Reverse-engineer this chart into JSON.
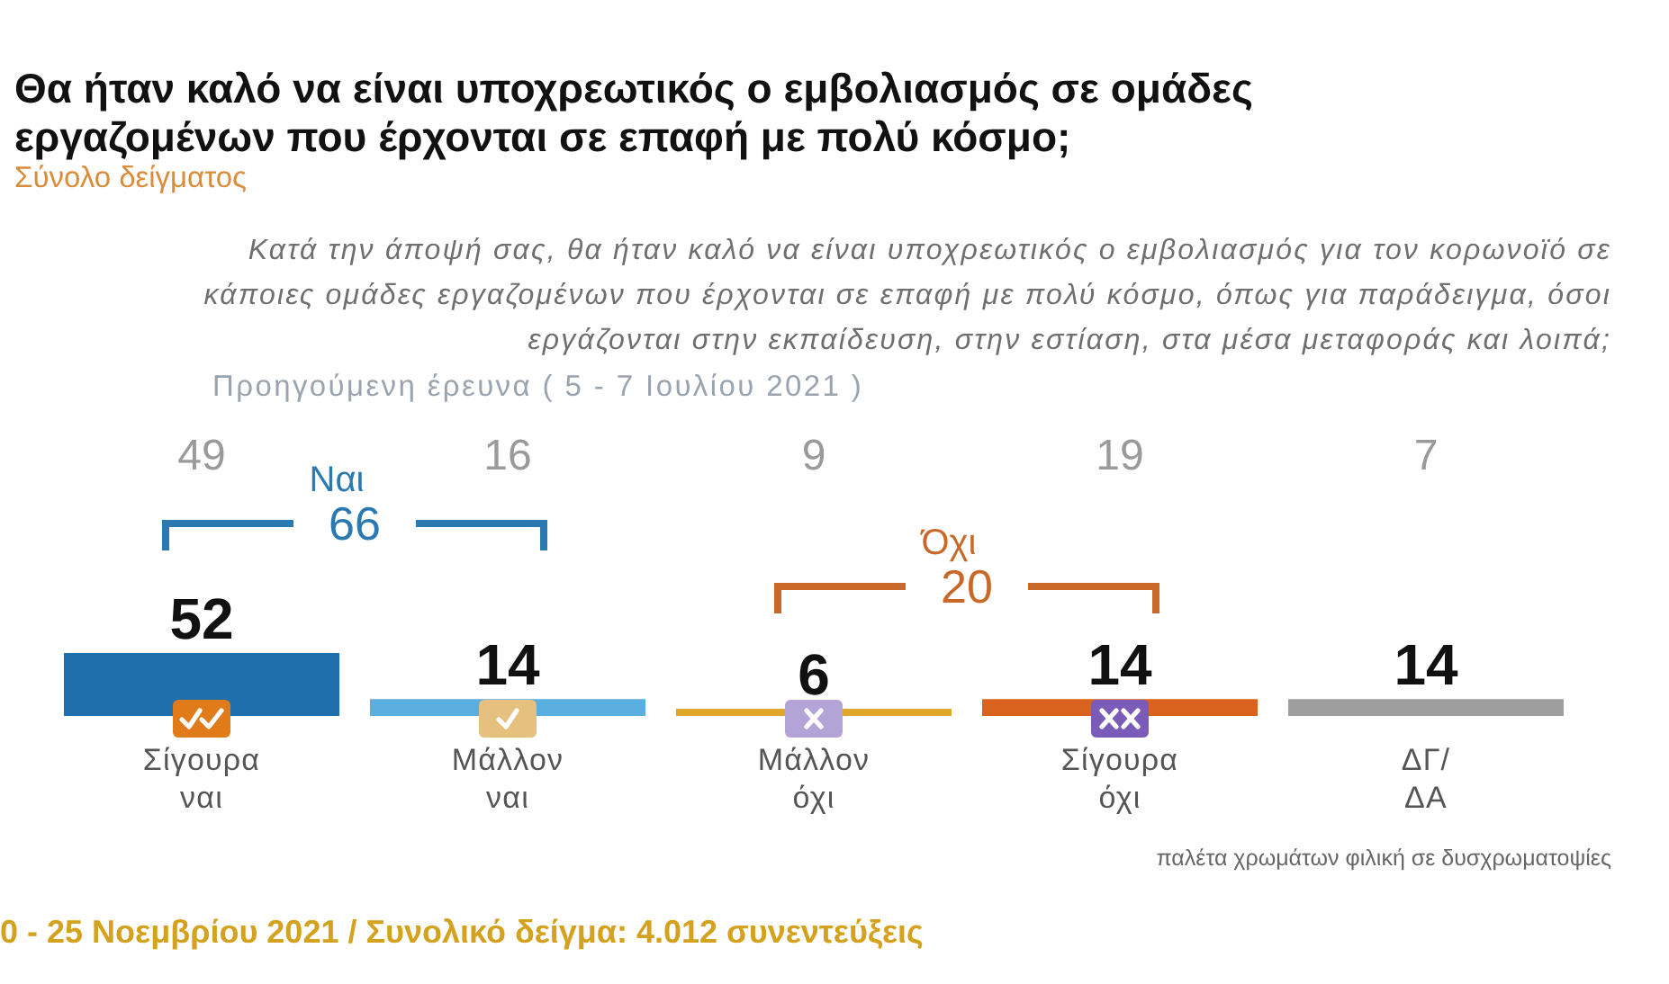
{
  "chart_data": {
    "type": "bar",
    "title": "Θα ήταν καλό να είναι υποχρεωτικός ο εμβολιασμός σε ομάδες εργαζομένων που έρχονται σε επαφή με πολύ κόσμο;",
    "subtitle": "Σύνολο δείγματος",
    "categories": [
      "Σίγουρα ναι",
      "Μάλλον ναι",
      "Μάλλον όχι",
      "Σίγουρα όχι",
      "ΔΓ/ΔΑ"
    ],
    "values": [
      52,
      14,
      6,
      14,
      14
    ],
    "colors": [
      "#1f6fad",
      "#5aaee0",
      "#e3a82b",
      "#d9621f",
      "#9e9e9e"
    ],
    "data_labels": true,
    "annotations": [
      "Κατά την άποψή σας, θα ήταν καλό να είναι υποχρεωτικός ο εμβολιασμός για τον κορωνοϊό σε κάποιες ομάδες εργαζομένων που έρχονται σε επαφή με πολύ κόσμο, όπως για παράδειγμα, όσοι εργάζονται στην εκπαίδευση, στην εστίαση, στα μέσα μεταφοράς και λοιπά;",
      "Προηγούμενη έρευνα ( 5 - 7 Ιουλίου 2021 )",
      "49",
      "16",
      "9",
      "19",
      "7",
      "Ναι",
      "66",
      "Όχι",
      "20",
      "παλέτα χρωμάτων φιλική σε δυσχρωματοψίες",
      "0 - 25 Νοεμβρίου 2021 / Συνολικό δείγμα: 4.012 συνεντεύξεις"
    ]
  }
}
